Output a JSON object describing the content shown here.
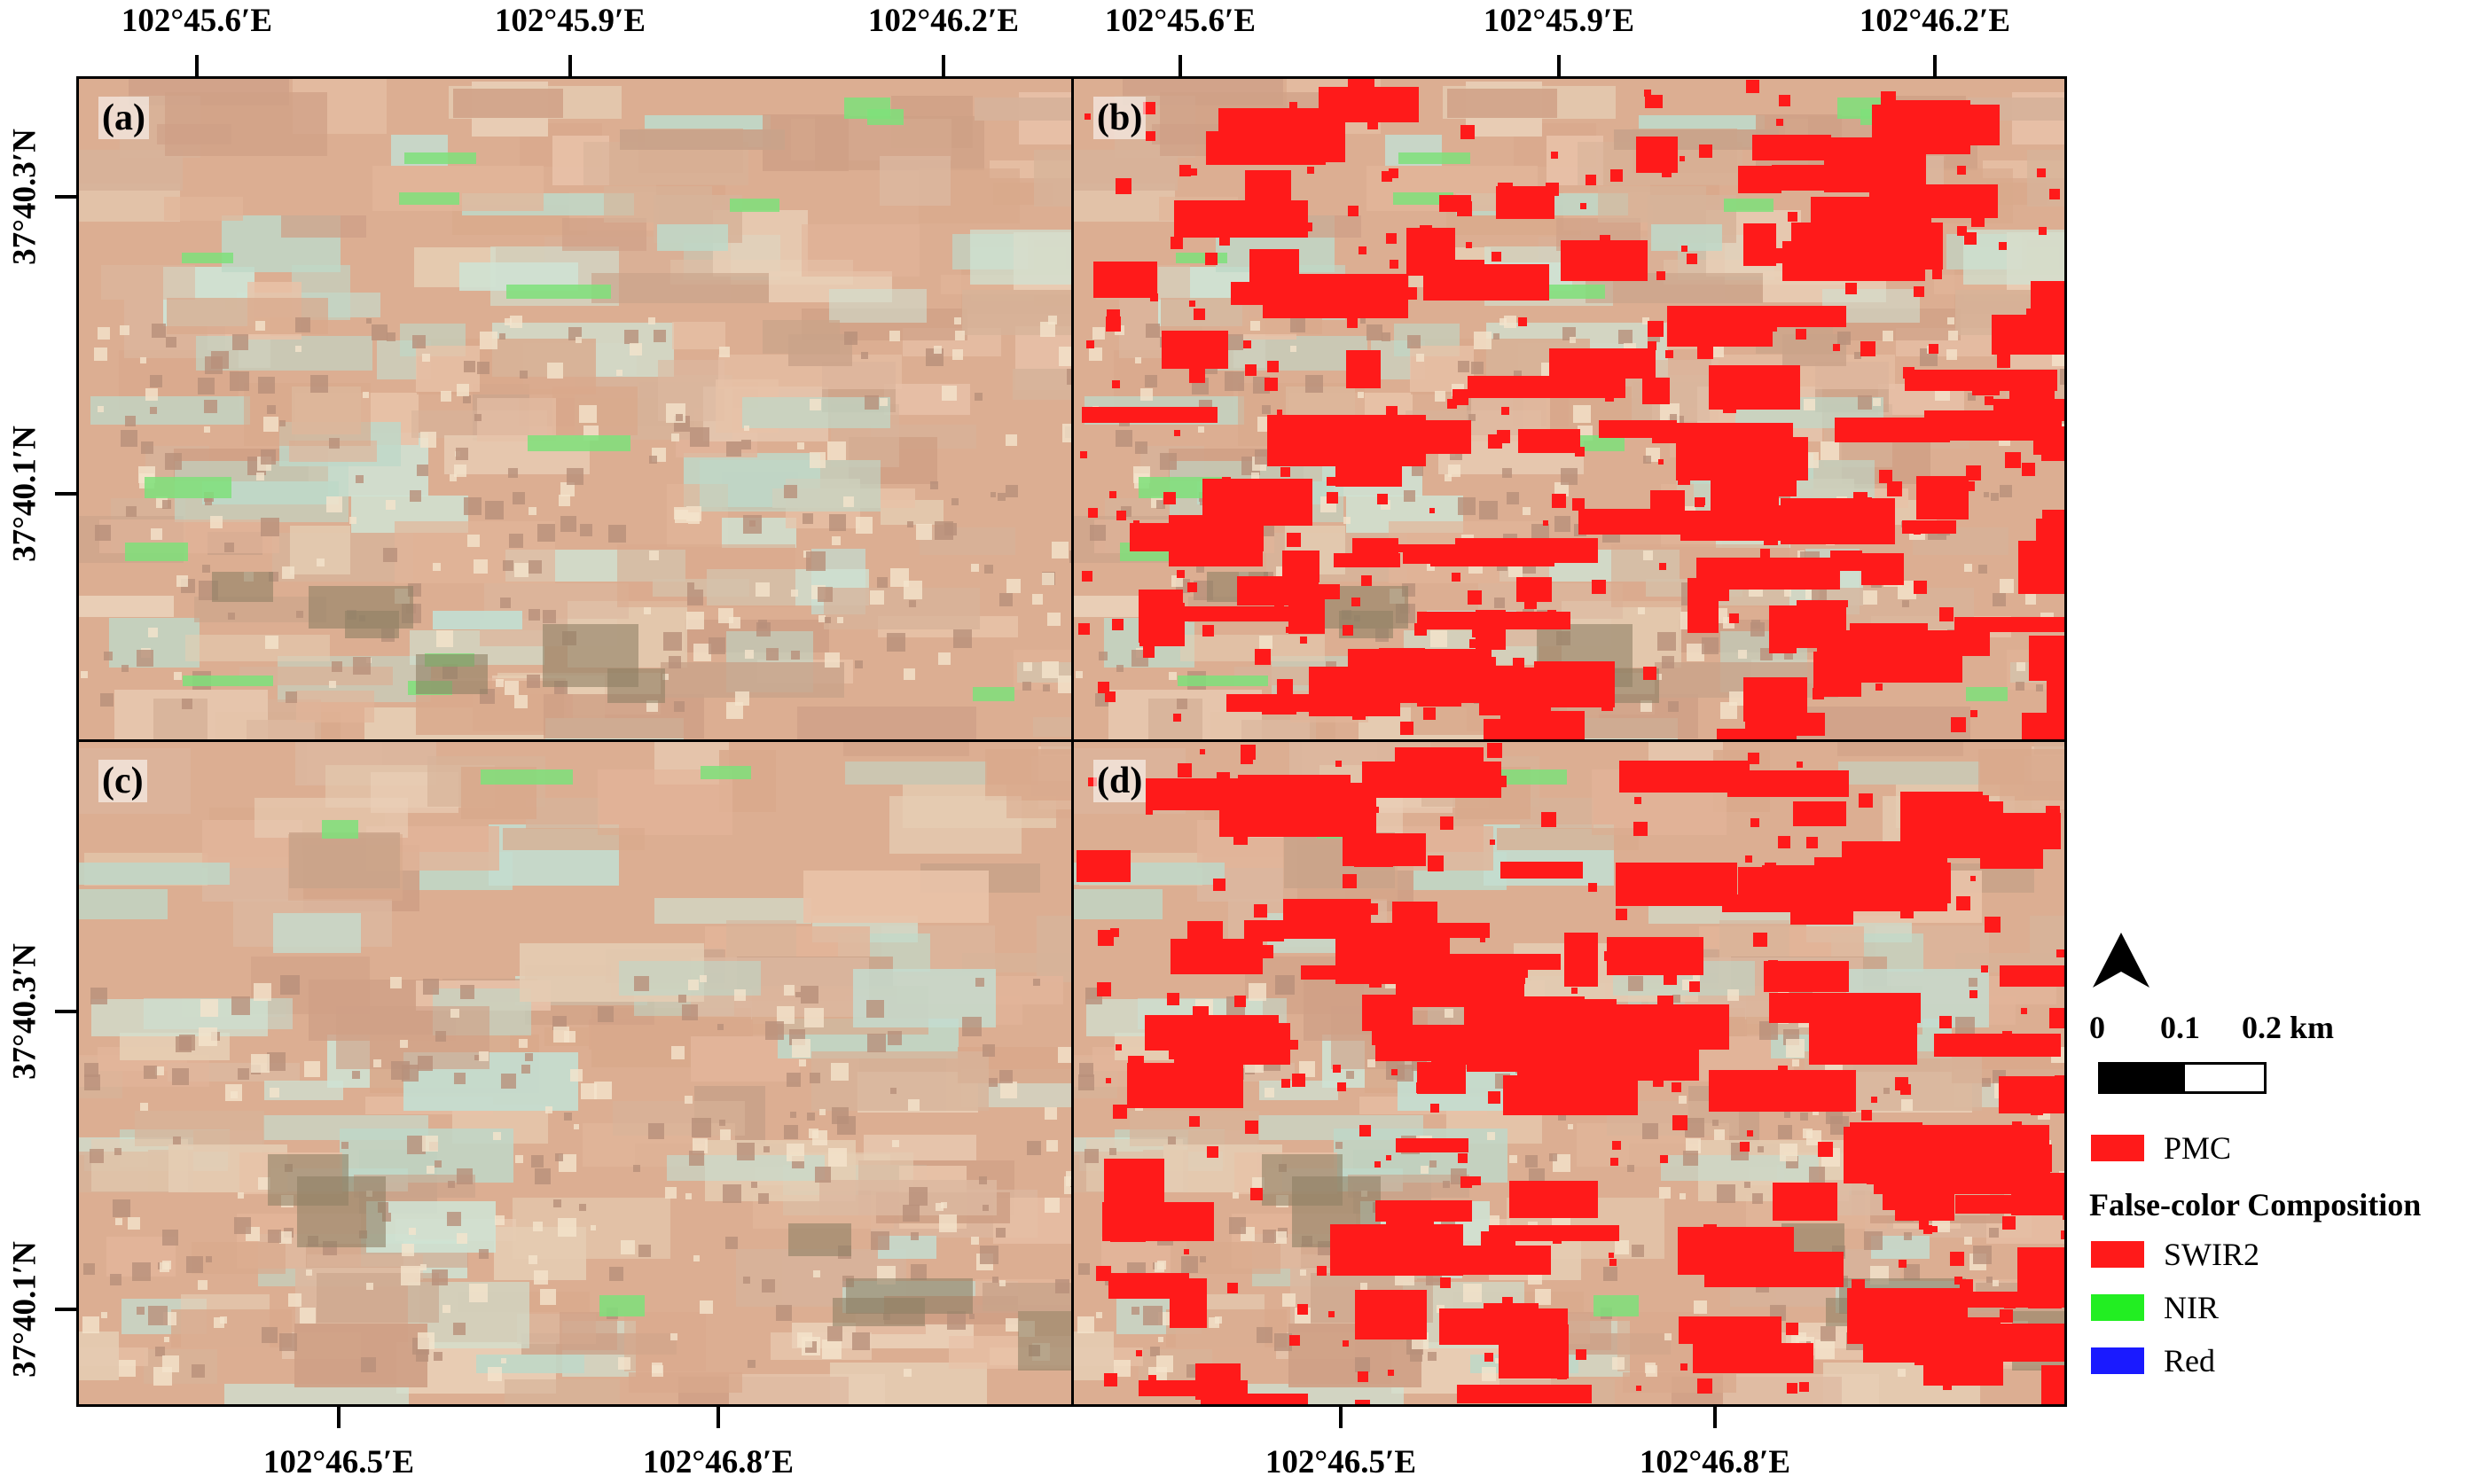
{
  "panels": [
    {
      "label": "(a)",
      "pmc": false,
      "variant": 1
    },
    {
      "label": "(b)",
      "pmc": true,
      "variant": 1
    },
    {
      "label": "(c)",
      "pmc": false,
      "variant": 2
    },
    {
      "label": "(d)",
      "pmc": true,
      "variant": 2
    }
  ],
  "axes": {
    "top_left": [
      "102°45.6′E",
      "102°45.9′E",
      "102°46.2′E"
    ],
    "top_right": [
      "102°45.6′E",
      "102°45.9′E",
      "102°46.2′E"
    ],
    "bottom_left": [
      "102°46.5′E",
      "102°46.8′E"
    ],
    "bottom_right": [
      "102°46.5′E",
      "102°46.8′E"
    ],
    "left_upper": [
      "37°40.3′N",
      "37°40.1′N"
    ],
    "left_lower": [
      "37°40.3′N",
      "37°40.1′N"
    ]
  },
  "scalebar": {
    "labels": [
      "0",
      "0.1",
      "0.2 km"
    ]
  },
  "legend": {
    "pmc_label": "PMC",
    "pmc_color": "#ff1a1a",
    "fcc_title": "False-color Composition",
    "bands": [
      {
        "label": "SWIR2",
        "color": "#ff1a1a"
      },
      {
        "label": "NIR",
        "color": "#22ee22"
      },
      {
        "label": "Red",
        "color": "#1a1aff"
      }
    ]
  },
  "icons": {
    "north_arrow": "north-arrow-icon"
  },
  "colors": {
    "background_tan": "#dcae92",
    "pmc_red": "#ff1a1a"
  }
}
